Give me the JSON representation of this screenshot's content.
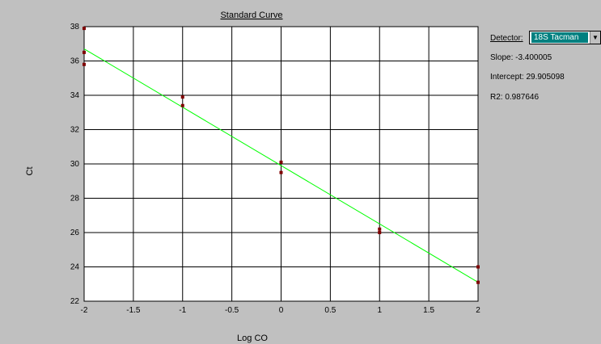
{
  "chart_data": {
    "type": "scatter",
    "title": "Standard Curve",
    "xlabel": "Log CO",
    "ylabel": "Ct",
    "xlim": [
      -2,
      2
    ],
    "ylim": [
      22,
      38
    ],
    "x_ticks": [
      "-2",
      "-1.5",
      "-1",
      "-0.5",
      "0",
      "0.5",
      "1",
      "1.5",
      "2"
    ],
    "y_ticks": [
      "22",
      "24",
      "26",
      "28",
      "30",
      "32",
      "34",
      "36",
      "38"
    ],
    "grid": {
      "vertical": true,
      "horizontal": true
    },
    "points": [
      {
        "x": -2,
        "y": 37.9
      },
      {
        "x": -2,
        "y": 36.5
      },
      {
        "x": -2,
        "y": 35.8
      },
      {
        "x": -1,
        "y": 33.9
      },
      {
        "x": -1,
        "y": 33.4
      },
      {
        "x": 0,
        "y": 30.1
      },
      {
        "x": 0,
        "y": 29.5
      },
      {
        "x": 1,
        "y": 26.2
      },
      {
        "x": 1,
        "y": 26.0
      },
      {
        "x": 2,
        "y": 24.0
      },
      {
        "x": 2,
        "y": 23.1
      }
    ],
    "fit_line": {
      "slope": -3.400005,
      "intercept": 29.905098
    },
    "colors": {
      "plot_bg": "#ffffff",
      "grid": "#000000",
      "fit_line": "#00ff00",
      "points": "#800000",
      "window_bg": "#c0c0c0"
    }
  },
  "side_panel": {
    "detector_label": "Detector:",
    "detector_value": "18S Tacman",
    "slope_text": "Slope: -3.400005",
    "intercept_text": "Intercept: 29.905098",
    "r2_text": "R2: 0.987646"
  }
}
